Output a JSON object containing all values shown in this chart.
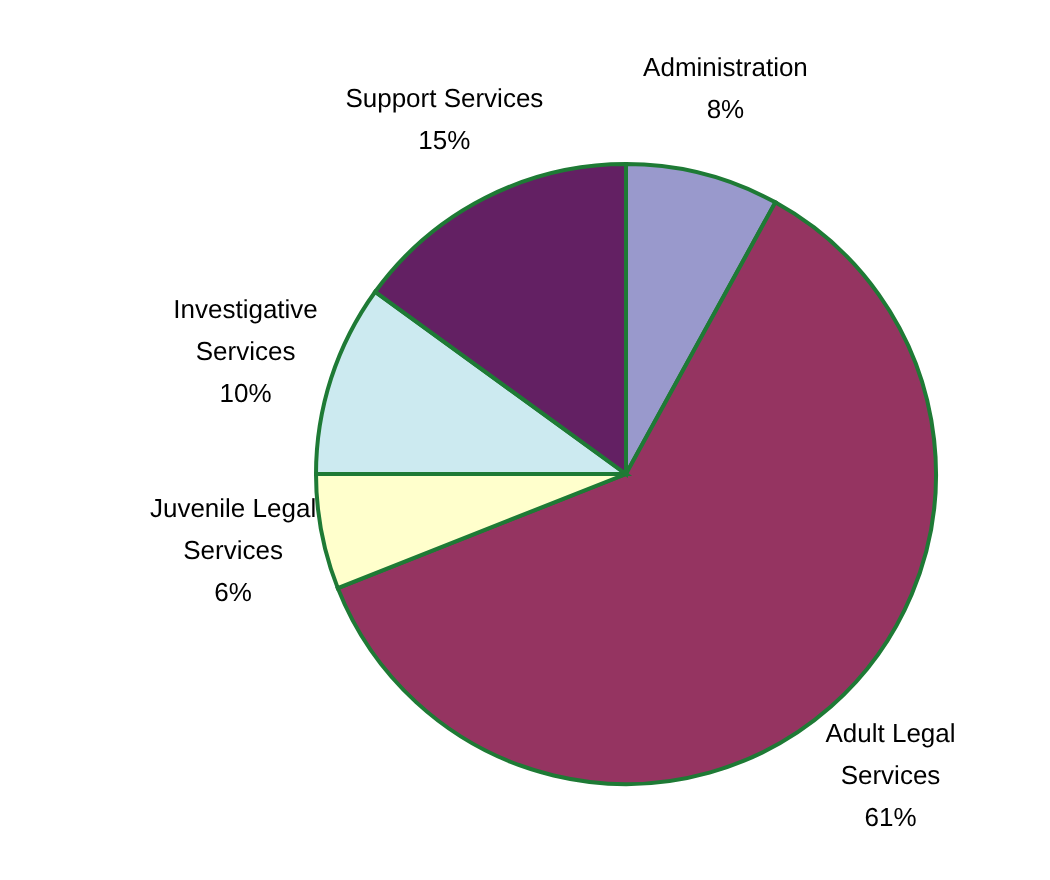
{
  "chart_data": {
    "type": "pie",
    "categories": [
      "Administration",
      "Adult Legal Services",
      "Juvenile Legal Services",
      "Investigative Services",
      "Support Services"
    ],
    "values": [
      8,
      61,
      6,
      10,
      15
    ],
    "colors": [
      "#9999cc",
      "#953461",
      "#ffffcc",
      "#cceaf0",
      "#632063"
    ],
    "value_labels": [
      "8%",
      "61%",
      "6%",
      "10%",
      "15%"
    ],
    "legend": false
  }
}
